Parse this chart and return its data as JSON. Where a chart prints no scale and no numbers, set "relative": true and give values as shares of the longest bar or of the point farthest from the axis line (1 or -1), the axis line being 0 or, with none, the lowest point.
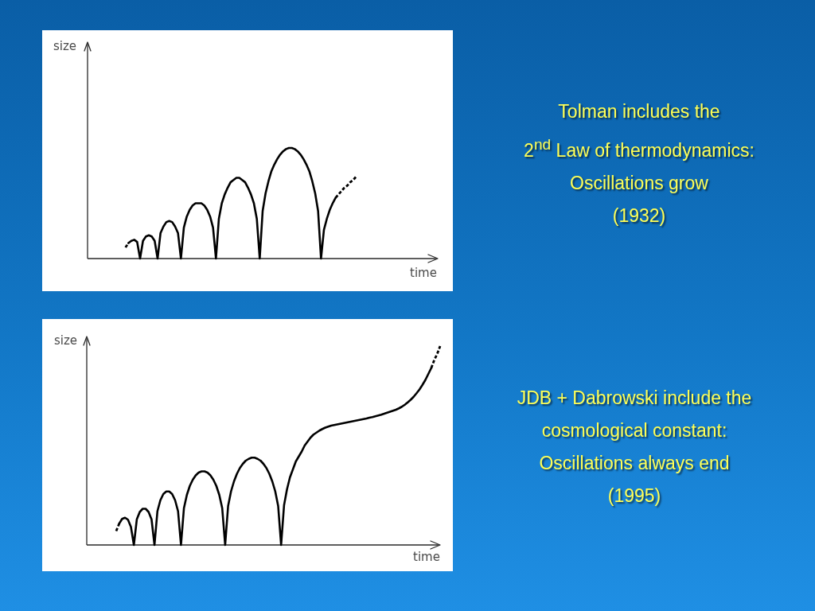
{
  "chart_data": [
    {
      "type": "line",
      "relative": true,
      "xlabel": "time",
      "ylabel": "size",
      "annotations": [
        "Tolman includes the",
        "2$^{nd}$ Law of thermodynamics:",
        "Oscillations grow",
        "(1932)"
      ],
      "categories": [
        null,
        null,
        null,
        null,
        null,
        null,
        null,
        null,
        null,
        null,
        null,
        null,
        null,
        null,
        null,
        null,
        null,
        null,
        null,
        null,
        null,
        null,
        null,
        null,
        null,
        null,
        null,
        null,
        null,
        null,
        null,
        null,
        null,
        null,
        null,
        null,
        null,
        null,
        null,
        null,
        null,
        null,
        null,
        null,
        null,
        null,
        null,
        null,
        null,
        null,
        null,
        null,
        null,
        null,
        null,
        null,
        null,
        null,
        null,
        null,
        null,
        null,
        null,
        null,
        null,
        null,
        null,
        null,
        null,
        null,
        null,
        null,
        null,
        null,
        null,
        null,
        null,
        null,
        null,
        null,
        null,
        null,
        null,
        null,
        null,
        null,
        null,
        null,
        null,
        null,
        null,
        null,
        null,
        null,
        null,
        null,
        null,
        null,
        null,
        null,
        null,
        null,
        null,
        null,
        null,
        null,
        null,
        null,
        null,
        null,
        null,
        null,
        null,
        null,
        null,
        null,
        null,
        null,
        null,
        null,
        null
      ],
      "series": [
        {
          "color": "#000000",
          "line_style": "solid",
          "values": [
            null,
            null,
            null,
            null,
            null,
            null,
            null,
            null,
            null,
            null,
            null,
            null,
            null,
            null,
            0.14,
            0.16,
            0.17,
            0.15,
            0,
            0.16,
            0.2,
            0.21,
            0.2,
            0.16,
            0,
            0.23,
            0.29,
            0.33,
            0.34,
            0.33,
            0.29,
            0.23,
            0,
            0.28,
            0.38,
            0.44,
            0.48,
            0.5,
            0.5,
            0.5,
            0.48,
            0.44,
            0.38,
            0.28,
            0,
            0.36,
            0.5,
            0.58,
            0.64,
            0.69,
            0.71,
            0.73,
            0.73,
            0.71,
            0.69,
            0.64,
            0.58,
            0.5,
            0.36,
            0,
            0.43,
            0.59,
            0.7,
            0.79,
            0.85,
            0.9,
            0.94,
            0.97,
            0.99,
            1,
            1,
            0.99,
            0.97,
            0.94,
            0.9,
            0.85,
            0.79,
            0.7,
            0.59,
            0.43,
            0,
            0.26,
            0.36,
            0.44,
            0.5,
            0.55,
            null,
            null,
            null,
            null,
            null,
            null,
            null,
            null,
            null,
            null,
            null,
            null,
            null,
            null,
            null,
            null,
            null,
            null,
            null,
            null,
            null,
            null,
            null,
            null,
            null,
            null,
            null,
            null,
            null,
            null,
            null,
            null,
            null,
            null,
            null
          ]
        },
        {
          "color": "#000000",
          "line_style": "dashed",
          "values": [
            null,
            null,
            null,
            null,
            null,
            null,
            null,
            null,
            null,
            null,
            null,
            null,
            null,
            0.1,
            0.14,
            null,
            null,
            null,
            null,
            null,
            null,
            null,
            null,
            null,
            null,
            null,
            null,
            null,
            null,
            null,
            null,
            null,
            null,
            null,
            null,
            null,
            null,
            null,
            null,
            null,
            null,
            null,
            null,
            null,
            null,
            null,
            null,
            null,
            null,
            null,
            null,
            null,
            null,
            null,
            null,
            null,
            null,
            null,
            null,
            null,
            null,
            null,
            null,
            null,
            null,
            null,
            null,
            null,
            null,
            null,
            null,
            null,
            null,
            null,
            null,
            null,
            null,
            null,
            null,
            null,
            null,
            null,
            null,
            null,
            null,
            0.55,
            0.58,
            0.61,
            0.64,
            0.66,
            0.69,
            0.71,
            0.74,
            null,
            null,
            null,
            null,
            null,
            null,
            null,
            null,
            null,
            null,
            null,
            null,
            null,
            null,
            null,
            null,
            null,
            null,
            null,
            null,
            null,
            null,
            null,
            null,
            null,
            null,
            null,
            null
          ]
        }
      ]
    },
    {
      "type": "line",
      "relative": true,
      "xlabel": "time",
      "ylabel": "size",
      "annotations": [
        "JDB + Dabrowski include the",
        "cosmological constant:",
        "Oscillations always end",
        "(1995)"
      ],
      "categories": [
        null,
        null,
        null,
        null,
        null,
        null,
        null,
        null,
        null,
        null,
        null,
        null,
        null,
        null,
        null,
        null,
        null,
        null,
        null,
        null,
        null,
        null,
        null,
        null,
        null,
        null,
        null,
        null,
        null,
        null,
        null,
        null,
        null,
        null,
        null,
        null,
        null,
        null,
        null,
        null,
        null,
        null,
        null,
        null,
        null,
        null,
        null,
        null,
        null,
        null,
        null,
        null,
        null,
        null,
        null,
        null,
        null,
        null,
        null,
        null,
        null,
        null,
        null,
        null,
        null,
        null,
        null,
        null,
        null,
        null,
        null,
        null,
        null,
        null,
        null,
        null,
        null,
        null,
        null,
        null,
        null,
        null,
        null,
        null,
        null,
        null,
        null,
        null,
        null,
        null,
        null,
        null,
        null,
        null,
        null,
        null,
        null,
        null,
        null,
        null,
        null,
        null,
        null,
        null,
        null,
        null,
        null,
        null,
        null,
        null,
        null,
        null,
        null,
        null,
        null,
        null,
        null,
        null,
        null,
        null,
        null
      ],
      "series": [
        {
          "color": "#000000",
          "line_style": "solid",
          "values": [
            null,
            null,
            null,
            null,
            null,
            null,
            null,
            null,
            null,
            null,
            null,
            0.107,
            0.131,
            0.137,
            0.127,
            0.091,
            0,
            0.129,
            0.166,
            0.182,
            0.182,
            0.166,
            0.129,
            0,
            0.17,
            0.225,
            0.256,
            0.269,
            0.269,
            0.256,
            0.225,
            0.17,
            0,
            0.185,
            0.252,
            0.297,
            0.328,
            0.35,
            0.364,
            0.37,
            0.37,
            0.364,
            0.35,
            0.328,
            0.297,
            0.252,
            0.185,
            0,
            0.196,
            0.27,
            0.32,
            0.358,
            0.387,
            0.408,
            0.424,
            0.433,
            0.439,
            0.439,
            0.433,
            0.424,
            0.408,
            0.387,
            0.358,
            0.32,
            0.27,
            0.196,
            0,
            0.2,
            0.28,
            0.34,
            0.38,
            0.42,
            0.445,
            0.47,
            0.5,
            0.52,
            0.54,
            0.555,
            0.565,
            0.575,
            0.583,
            0.59,
            0.595,
            0.6,
            0.603,
            0.606,
            0.609,
            0.612,
            0.615,
            0.618,
            0.621,
            0.624,
            0.627,
            0.63,
            0.633,
            0.636,
            0.64,
            0.643,
            0.647,
            0.651,
            0.655,
            0.66,
            0.665,
            0.67,
            0.675,
            0.68,
            0.687,
            0.695,
            0.705,
            0.717,
            0.73,
            0.745,
            0.763,
            0.782,
            0.805,
            0.83,
            0.86,
            0.89,
            null,
            null,
            null
          ]
        },
        {
          "color": "#000000",
          "line_style": "dashed",
          "values": [
            null,
            null,
            null,
            null,
            null,
            null,
            null,
            null,
            null,
            null,
            0.07,
            0.107,
            null,
            null,
            null,
            null,
            null,
            null,
            null,
            null,
            null,
            null,
            null,
            null,
            null,
            null,
            null,
            null,
            null,
            null,
            null,
            null,
            null,
            null,
            null,
            null,
            null,
            null,
            null,
            null,
            null,
            null,
            null,
            null,
            null,
            null,
            null,
            null,
            null,
            null,
            null,
            null,
            null,
            null,
            null,
            null,
            null,
            null,
            null,
            null,
            null,
            null,
            null,
            null,
            null,
            null,
            null,
            null,
            null,
            null,
            null,
            null,
            null,
            null,
            null,
            null,
            null,
            null,
            null,
            null,
            null,
            null,
            null,
            null,
            null,
            null,
            null,
            null,
            null,
            null,
            null,
            null,
            null,
            null,
            null,
            null,
            null,
            null,
            null,
            null,
            null,
            null,
            null,
            null,
            null,
            null,
            null,
            null,
            null,
            null,
            null,
            null,
            null,
            null,
            null,
            null,
            null,
            0.89,
            0.93,
            0.96,
            1
          ]
        }
      ]
    }
  ]
}
